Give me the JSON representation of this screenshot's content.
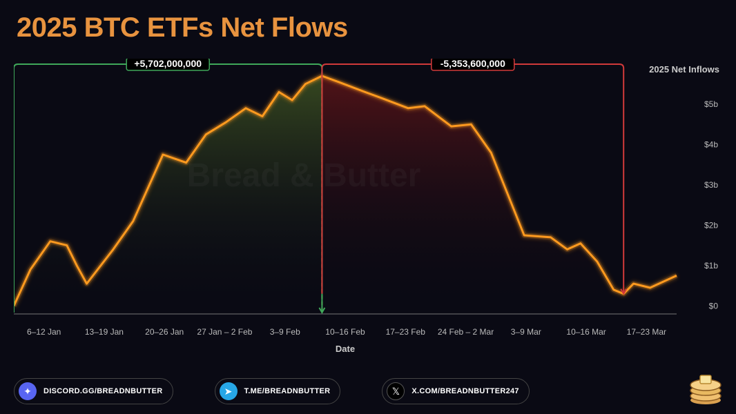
{
  "title": "2025 BTC ETFs Net Flows",
  "title_color": "#e8933f",
  "watermark": "Bread & Butter",
  "chart": {
    "type": "line-area",
    "xlabel": "Date",
    "ylabel": "2025 Net Inflows",
    "background": "#0a0a14",
    "line_color": "#ff9a1f",
    "line_glow": "#ff9a1f",
    "line_width": 3,
    "area_pos_top": "#5a7a2a",
    "area_neg_top": "#8a1a1a",
    "divider_x": 0.465,
    "divider_color": "#d9a84a",
    "axis_color": "#777",
    "x_ticks": [
      "6–12 Jan",
      "13–19 Jan",
      "20–26 Jan",
      "27 Jan – 2 Feb",
      "3–9 Feb",
      "10–16 Feb",
      "17–23 Feb",
      "24 Feb – 2 Mar",
      "3–9 Mar",
      "10–16 Mar",
      "17–23 Mar"
    ],
    "y_ticks": [
      "$0",
      "$1b",
      "$2b",
      "$3b",
      "$4b",
      "$5b"
    ],
    "y_max": 5700000000,
    "y_min": -200000000,
    "points": [
      [
        0.0,
        0.0
      ],
      [
        0.025,
        0.9
      ],
      [
        0.055,
        1.6
      ],
      [
        0.08,
        1.5
      ],
      [
        0.095,
        1.0
      ],
      [
        0.11,
        0.55
      ],
      [
        0.15,
        1.4
      ],
      [
        0.18,
        2.1
      ],
      [
        0.225,
        3.75
      ],
      [
        0.26,
        3.55
      ],
      [
        0.29,
        4.25
      ],
      [
        0.32,
        4.55
      ],
      [
        0.35,
        4.9
      ],
      [
        0.375,
        4.7
      ],
      [
        0.4,
        5.3
      ],
      [
        0.42,
        5.1
      ],
      [
        0.44,
        5.5
      ],
      [
        0.465,
        5.7
      ],
      [
        0.49,
        5.55
      ],
      [
        0.53,
        5.3
      ],
      [
        0.555,
        5.15
      ],
      [
        0.595,
        4.9
      ],
      [
        0.62,
        4.95
      ],
      [
        0.66,
        4.45
      ],
      [
        0.69,
        4.5
      ],
      [
        0.72,
        3.8
      ],
      [
        0.77,
        1.75
      ],
      [
        0.81,
        1.7
      ],
      [
        0.835,
        1.4
      ],
      [
        0.855,
        1.55
      ],
      [
        0.88,
        1.1
      ],
      [
        0.905,
        0.4
      ],
      [
        0.92,
        0.3
      ],
      [
        0.935,
        0.55
      ],
      [
        0.96,
        0.45
      ],
      [
        1.0,
        0.75
      ]
    ],
    "annotations": {
      "positive": {
        "label": "+5,702,000,000",
        "color": "#3fa85a"
      },
      "negative": {
        "label": "-5,353,600,000",
        "color": "#d13a3a"
      }
    }
  },
  "socials": [
    {
      "name": "discord",
      "label": "DISCORD.GG/BREADNBUTTER",
      "icon_bg": "#5865F2",
      "glyph": "✦"
    },
    {
      "name": "telegram",
      "label": "T.ME/BREADNBUTTER",
      "icon_bg": "#27a7e7",
      "glyph": "➤"
    },
    {
      "name": "x",
      "label": "X.COM/BREADNBUTTER247",
      "icon_bg": "#000",
      "glyph": "𝕏"
    }
  ]
}
